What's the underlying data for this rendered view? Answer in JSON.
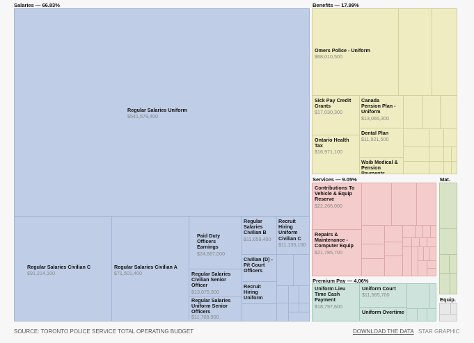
{
  "chart_data": {
    "type": "treemap",
    "groups": [
      {
        "name": "Salaries",
        "share": "66.83%",
        "items": [
          {
            "label": "Regular Salaries Uniform",
            "value": "$541,579,400"
          },
          {
            "label": "Regular Salaries Civilian C",
            "value": "$91,214,100"
          },
          {
            "label": "Regular Salaries Civilian A",
            "value": "$71,501,400"
          },
          {
            "label": "Paid Duty Officers Earnings",
            "value": "$24,667,000"
          },
          {
            "label": "Regular Salaries Civilian Senior Officer",
            "value": "$13,075,900"
          },
          {
            "label": "Regular Salaries Uniform Senior Officers",
            "value": "$11,708,900"
          },
          {
            "label": "Regular Salaries Civilian B",
            "value": "$11,659,400"
          },
          {
            "label": "Recruit Hiring Uniform Civilian C",
            "value": "$11,135,100"
          },
          {
            "label": "Civilian (D) - P/t Court Officers",
            "value": ""
          },
          {
            "label": "Recruit Hiring Uniform",
            "value": ""
          }
        ]
      },
      {
        "name": "Benefits",
        "share": "17.99%",
        "items": [
          {
            "label": "Omers Police - Uniform",
            "value": "$68,010,500"
          },
          {
            "label": "Sick Pay Credit Grants",
            "value": "$17,030,300"
          },
          {
            "label": "Ontario Health Tax",
            "value": "$16,971,100"
          },
          {
            "label": "Canada Pension Plan - Uniform",
            "value": "$13,065,300"
          },
          {
            "label": "Dental Plan",
            "value": "$11,921,500"
          },
          {
            "label": "Wsib Medical & Pension Payments",
            "value": ""
          }
        ]
      },
      {
        "name": "Services",
        "share": "9.05%",
        "items": [
          {
            "label": "Contributions To Vehicle & Equip Reserve",
            "value": "$22,266,000"
          },
          {
            "label": "Repairs & Maintenance - Computer Equip",
            "value": "$21,785,700"
          }
        ]
      },
      {
        "name": "Premium Pay",
        "share": "4.06%",
        "items": [
          {
            "label": "Uniform Lieu Time Cash Payment",
            "value": "$18,797,600"
          },
          {
            "label": "Uniform Court",
            "value": "$11,565,700"
          },
          {
            "label": "Uniform Overtime",
            "value": ""
          }
        ]
      },
      {
        "name": "Mat.",
        "share": ""
      },
      {
        "name": "Equip.",
        "share": ""
      }
    ],
    "colors": {
      "Salaries": "#bfcde6",
      "Benefits": "#eeecc0",
      "Services": "#f4cccc",
      "Premium Pay": "#cde3dc",
      "Mat.": "#d7e3c4",
      "Equip.": "#e8e8e8"
    }
  },
  "headers": {
    "salaries": "Salaries — 66.83%",
    "benefits": "Benefits — 17.99%",
    "services": "Services — 9.05%",
    "premium": "Premium Pay — 4.06%",
    "mat": "Mat.",
    "equip": "Equip."
  },
  "footer": {
    "source": "SOURCE: TORONTO POLICE SERVICE TOTAL OPERATING BUDGET",
    "download": "DOWNLOAD THE DATA",
    "star": "STAR GRAPHIC"
  }
}
